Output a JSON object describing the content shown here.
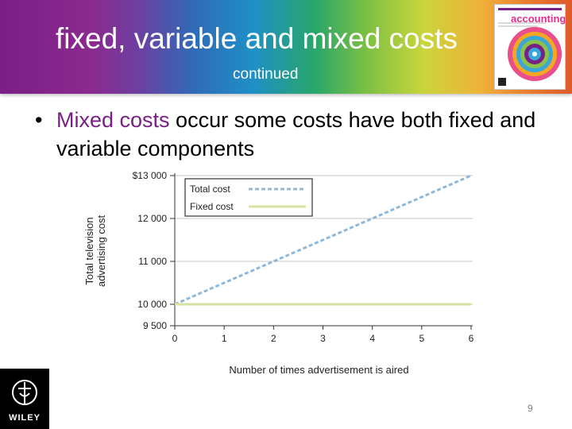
{
  "slide": {
    "title": "fixed, variable and mixed costs",
    "subtitle": "continued",
    "bullet_highlight": "Mixed costs",
    "bullet_rest": " occur some costs have both fixed and variable components",
    "page_number": "9",
    "publisher": "WILEY",
    "book_title": "accounting"
  },
  "colors": {
    "highlight": "#7a1f86",
    "total_cost": "#8fb9dc",
    "fixed_cost": "#d7e3a1"
  },
  "chart_data": {
    "type": "line",
    "x": [
      0,
      1,
      2,
      3,
      4,
      5,
      6
    ],
    "xlabel": "Number of times advertisement is aired",
    "ylabel": [
      "Total television",
      "advertising cost"
    ],
    "ylim": [
      9500,
      13000
    ],
    "xlim": [
      0,
      6
    ],
    "yticks": [
      {
        "value": 13000,
        "label": "$13 000"
      },
      {
        "value": 12000,
        "label": "12 000"
      },
      {
        "value": 11000,
        "label": "11 000"
      },
      {
        "value": 10000,
        "label": "10 000"
      },
      {
        "value": 9500,
        "label": "9 500"
      }
    ],
    "xticks": [
      "0",
      "1",
      "2",
      "3",
      "4",
      "5",
      "6"
    ],
    "grid": true,
    "legend_position": "top-left",
    "series": [
      {
        "name": "Total cost",
        "style": "dashed",
        "color": "#8fb9dc",
        "values": [
          10000,
          10500,
          11000,
          11500,
          12000,
          12500,
          13000
        ]
      },
      {
        "name": "Fixed cost",
        "style": "solid",
        "color": "#d7e3a1",
        "values": [
          10000,
          10000,
          10000,
          10000,
          10000,
          10000,
          10000
        ]
      }
    ]
  }
}
